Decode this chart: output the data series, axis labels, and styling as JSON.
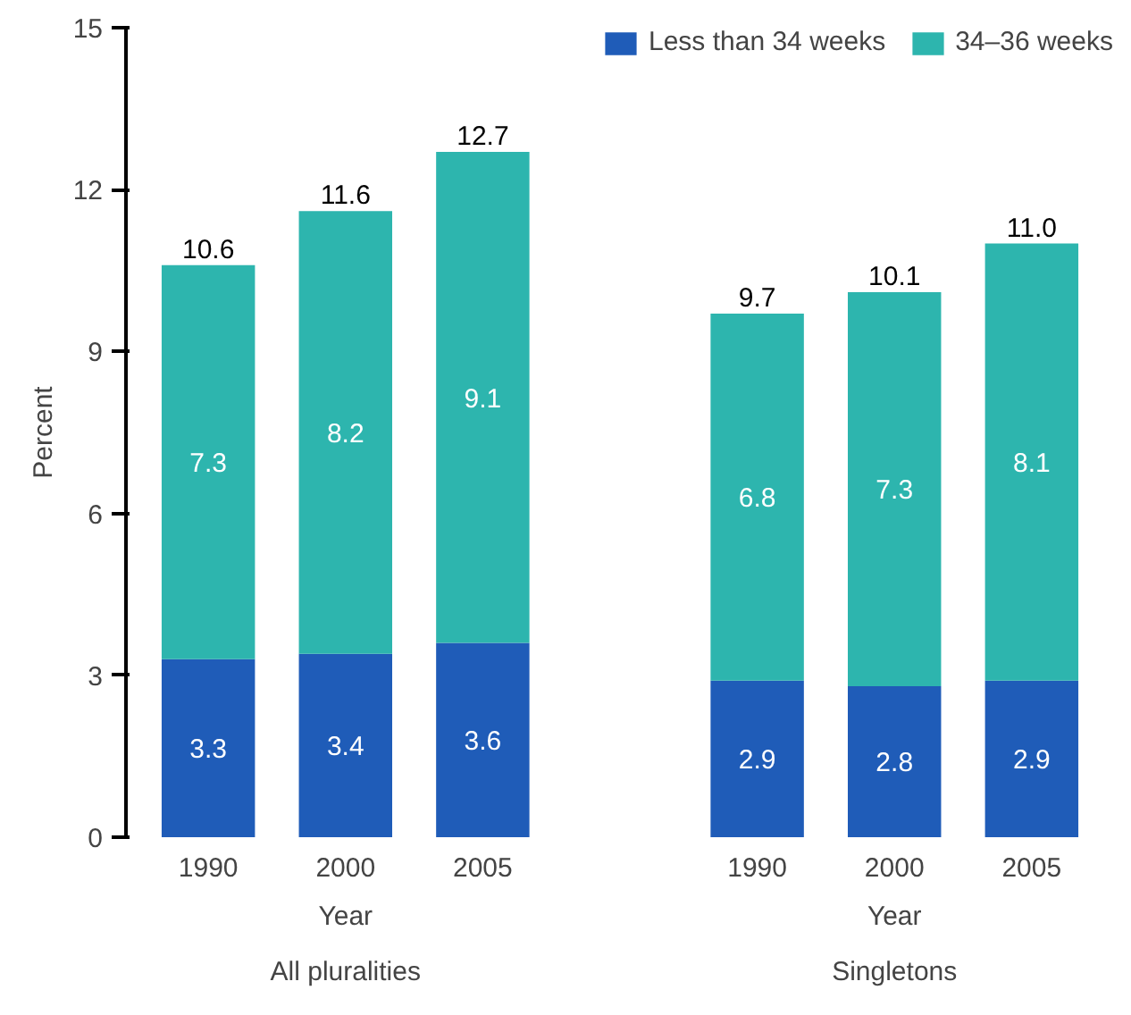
{
  "chart_data": {
    "type": "bar",
    "stacked": true,
    "xlabel": "Year",
    "ylabel": "Percent",
    "categories": [
      "1990",
      "2000",
      "2005",
      null,
      "1990",
      "2000",
      "2005"
    ],
    "series": [
      {
        "name": "Less than 34 weeks",
        "color": "#1f5cb8",
        "values": [
          3.3,
          3.4,
          3.6,
          null,
          2.9,
          2.8,
          2.9
        ]
      },
      {
        "name": "34–36 weeks",
        "color": "#2db5ae",
        "values": [
          7.3,
          8.2,
          9.1,
          null,
          6.8,
          7.3,
          8.1
        ]
      }
    ],
    "totals": [
      "10.6",
      "11.6",
      "12.7",
      null,
      "9.7",
      "10.1",
      "11.0"
    ],
    "data_labels": true,
    "annotations": [
      "All pluralities",
      "Singletons"
    ],
    "ylim": [
      0,
      15
    ],
    "yticks": [
      0,
      3,
      6,
      9,
      12,
      15
    ],
    "grid": false,
    "legend": "top right"
  }
}
